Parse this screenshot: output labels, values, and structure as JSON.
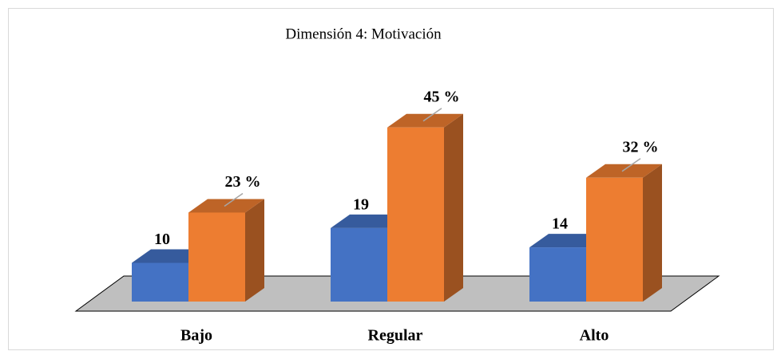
{
  "chart_data": {
    "type": "bar3d",
    "title": "Dimensión 4: Motivación",
    "categories": [
      "Bajo",
      "Regular",
      "Alto"
    ],
    "series": [
      {
        "color": "#4472c4",
        "values": [
          10,
          19,
          14
        ]
      },
      {
        "color": "#ed7d31",
        "values": [
          23,
          45,
          32
        ],
        "value_labels": [
          "23 %",
          "45 %",
          "32 %"
        ]
      }
    ]
  }
}
